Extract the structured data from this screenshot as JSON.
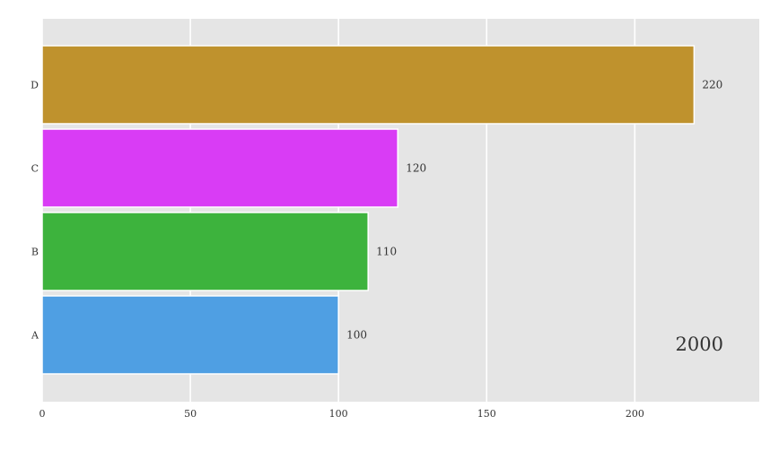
{
  "chart_data": {
    "type": "bar",
    "orientation": "horizontal",
    "categories": [
      "A",
      "B",
      "C",
      "D"
    ],
    "values": [
      100,
      110,
      120,
      220
    ],
    "value_labels": [
      "100",
      "110",
      "120",
      "220"
    ],
    "colors": [
      "#4f9fe3",
      "#3db33d",
      "#d93cf5",
      "#bf922d"
    ],
    "xlim": [
      0,
      242
    ],
    "x_ticks": [
      0,
      50,
      100,
      150,
      200
    ],
    "x_tick_labels": [
      "0",
      "50",
      "100",
      "150",
      "200"
    ],
    "overlay_label": "2000",
    "grid": true,
    "panel_background": "#e5e5e5",
    "grid_color": "#ffffff"
  }
}
